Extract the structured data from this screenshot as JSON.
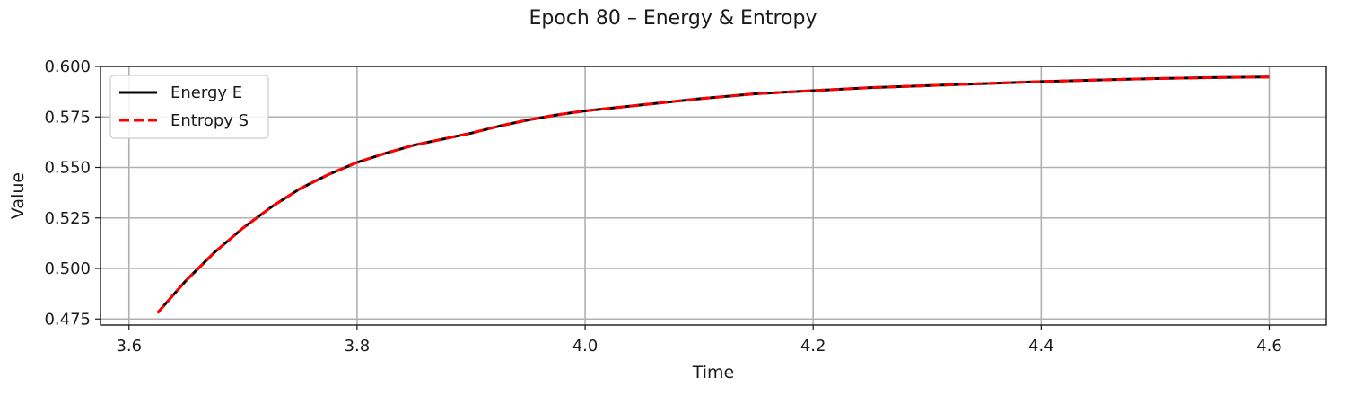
{
  "chart_data": {
    "type": "line",
    "title": "Epoch 80 – Energy & Entropy",
    "xlabel": "Time",
    "ylabel": "Value",
    "xlim": [
      3.575,
      4.65
    ],
    "ylim": [
      0.472,
      0.6
    ],
    "xticks": [
      3.6,
      3.8,
      4.0,
      4.2,
      4.4,
      4.6
    ],
    "xtick_labels": [
      "3.6",
      "3.8",
      "4.0",
      "4.2",
      "4.4",
      "4.6"
    ],
    "yticks": [
      0.475,
      0.5,
      0.525,
      0.55,
      0.575,
      0.6
    ],
    "ytick_labels": [
      "0.475",
      "0.500",
      "0.525",
      "0.550",
      "0.575",
      "0.600"
    ],
    "grid": true,
    "legend_position": "top-left",
    "x": [
      3.625,
      3.65,
      3.675,
      3.7,
      3.725,
      3.75,
      3.775,
      3.8,
      3.825,
      3.85,
      3.875,
      3.9,
      3.925,
      3.95,
      3.975,
      4.0,
      4.05,
      4.1,
      4.15,
      4.2,
      4.25,
      4.3,
      4.35,
      4.4,
      4.45,
      4.5,
      4.55,
      4.6
    ],
    "series": [
      {
        "name": "Energy E",
        "color": "#000000",
        "style": "solid",
        "values": [
          0.478,
          0.494,
          0.508,
          0.52,
          0.5305,
          0.5395,
          0.5465,
          0.5525,
          0.557,
          0.561,
          0.564,
          0.567,
          0.5705,
          0.5735,
          0.576,
          0.578,
          0.581,
          0.584,
          0.5865,
          0.588,
          0.5895,
          0.5905,
          0.5915,
          0.5925,
          0.5933,
          0.594,
          0.5945,
          0.5948
        ]
      },
      {
        "name": "Entropy S",
        "color": "#ff0000",
        "style": "dashed",
        "values": [
          0.478,
          0.494,
          0.508,
          0.52,
          0.5305,
          0.5395,
          0.5465,
          0.5525,
          0.557,
          0.561,
          0.564,
          0.567,
          0.5705,
          0.5735,
          0.576,
          0.578,
          0.581,
          0.584,
          0.5865,
          0.588,
          0.5895,
          0.5905,
          0.5915,
          0.5925,
          0.5933,
          0.594,
          0.5945,
          0.5948
        ]
      }
    ]
  }
}
